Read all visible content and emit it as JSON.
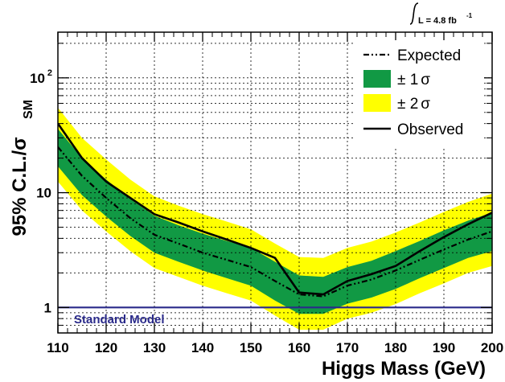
{
  "chart_data": {
    "type": "line",
    "xlabel": "Higgs Mass (GeV)",
    "ylabel_main": "95% C.L./σ",
    "ylabel_sub": "SM",
    "xlim": [
      110,
      200
    ],
    "ylim": [
      0.6,
      250
    ],
    "y_scale": "log",
    "grid": true,
    "x_ticks": [
      110,
      120,
      130,
      140,
      150,
      160,
      170,
      180,
      190,
      200
    ],
    "x_tick_labels": [
      "110",
      "120",
      "130",
      "140",
      "150",
      "160",
      "170",
      "180",
      "190",
      "200"
    ],
    "y_ticks": [
      {
        "value": 1,
        "label": "1",
        "sup": ""
      },
      {
        "value": 10,
        "label": "10",
        "sup": ""
      },
      {
        "value": 100,
        "label": "10",
        "sup": "2"
      }
    ],
    "luminosity": {
      "text": "L = 4.8 fb",
      "sup": "-1"
    },
    "reference_line": {
      "y": 1,
      "label": "Standard Model",
      "color": "#2a2a8a"
    },
    "x": [
      110,
      115,
      120,
      125,
      130,
      135,
      140,
      145,
      150,
      155,
      160,
      165,
      170,
      175,
      180,
      185,
      190,
      195,
      200
    ],
    "expected": [
      25,
      14,
      9,
      6,
      4.3,
      3.6,
      3.0,
      2.6,
      2.25,
      1.7,
      1.3,
      1.25,
      1.55,
      1.75,
      2.1,
      2.6,
      3.2,
      3.9,
      4.6
    ],
    "observed": [
      40,
      20,
      12.5,
      9,
      6.5,
      5.5,
      4.6,
      3.9,
      3.3,
      2.7,
      1.35,
      1.3,
      1.7,
      1.95,
      2.3,
      3.1,
      4.1,
      5.3,
      6.7
    ],
    "band_1sigma": {
      "low": [
        17,
        9.5,
        6.2,
        4.2,
        3.0,
        2.5,
        2.1,
        1.8,
        1.55,
        1.15,
        0.88,
        0.88,
        1.08,
        1.22,
        1.45,
        1.8,
        2.2,
        2.7,
        3.1
      ],
      "high": [
        36,
        20,
        13,
        8.8,
        6.3,
        5.2,
        4.4,
        3.8,
        3.3,
        2.5,
        1.9,
        1.85,
        2.25,
        2.55,
        3.1,
        3.8,
        4.7,
        5.7,
        6.7
      ]
    },
    "band_2sigma": {
      "low": [
        12.5,
        7,
        4.6,
        3.1,
        2.2,
        1.85,
        1.55,
        1.33,
        1.15,
        0.85,
        0.64,
        0.64,
        0.8,
        0.9,
        1.07,
        1.33,
        1.62,
        2.0,
        2.3
      ],
      "high": [
        55,
        30,
        19.5,
        13,
        9.3,
        7.7,
        6.5,
        5.6,
        4.8,
        3.6,
        2.75,
        2.7,
        3.3,
        3.75,
        4.5,
        5.5,
        6.8,
        8.3,
        9.8
      ]
    },
    "legend": {
      "position": "top-right",
      "entries": [
        {
          "label": "Expected",
          "sym": "",
          "style": "dash-dot"
        },
        {
          "label": "± 1",
          "sym": "σ",
          "style": "band",
          "color": "#119944"
        },
        {
          "label": "± 2",
          "sym": "σ",
          "style": "band",
          "color": "#ffff00"
        },
        {
          "label": "Observed",
          "sym": "",
          "style": "solid"
        }
      ]
    },
    "colors": {
      "band_1sigma": "#119944",
      "band_2sigma": "#ffff00",
      "observed": "#000000",
      "expected": "#000000",
      "reference": "#2a2a8a"
    }
  }
}
